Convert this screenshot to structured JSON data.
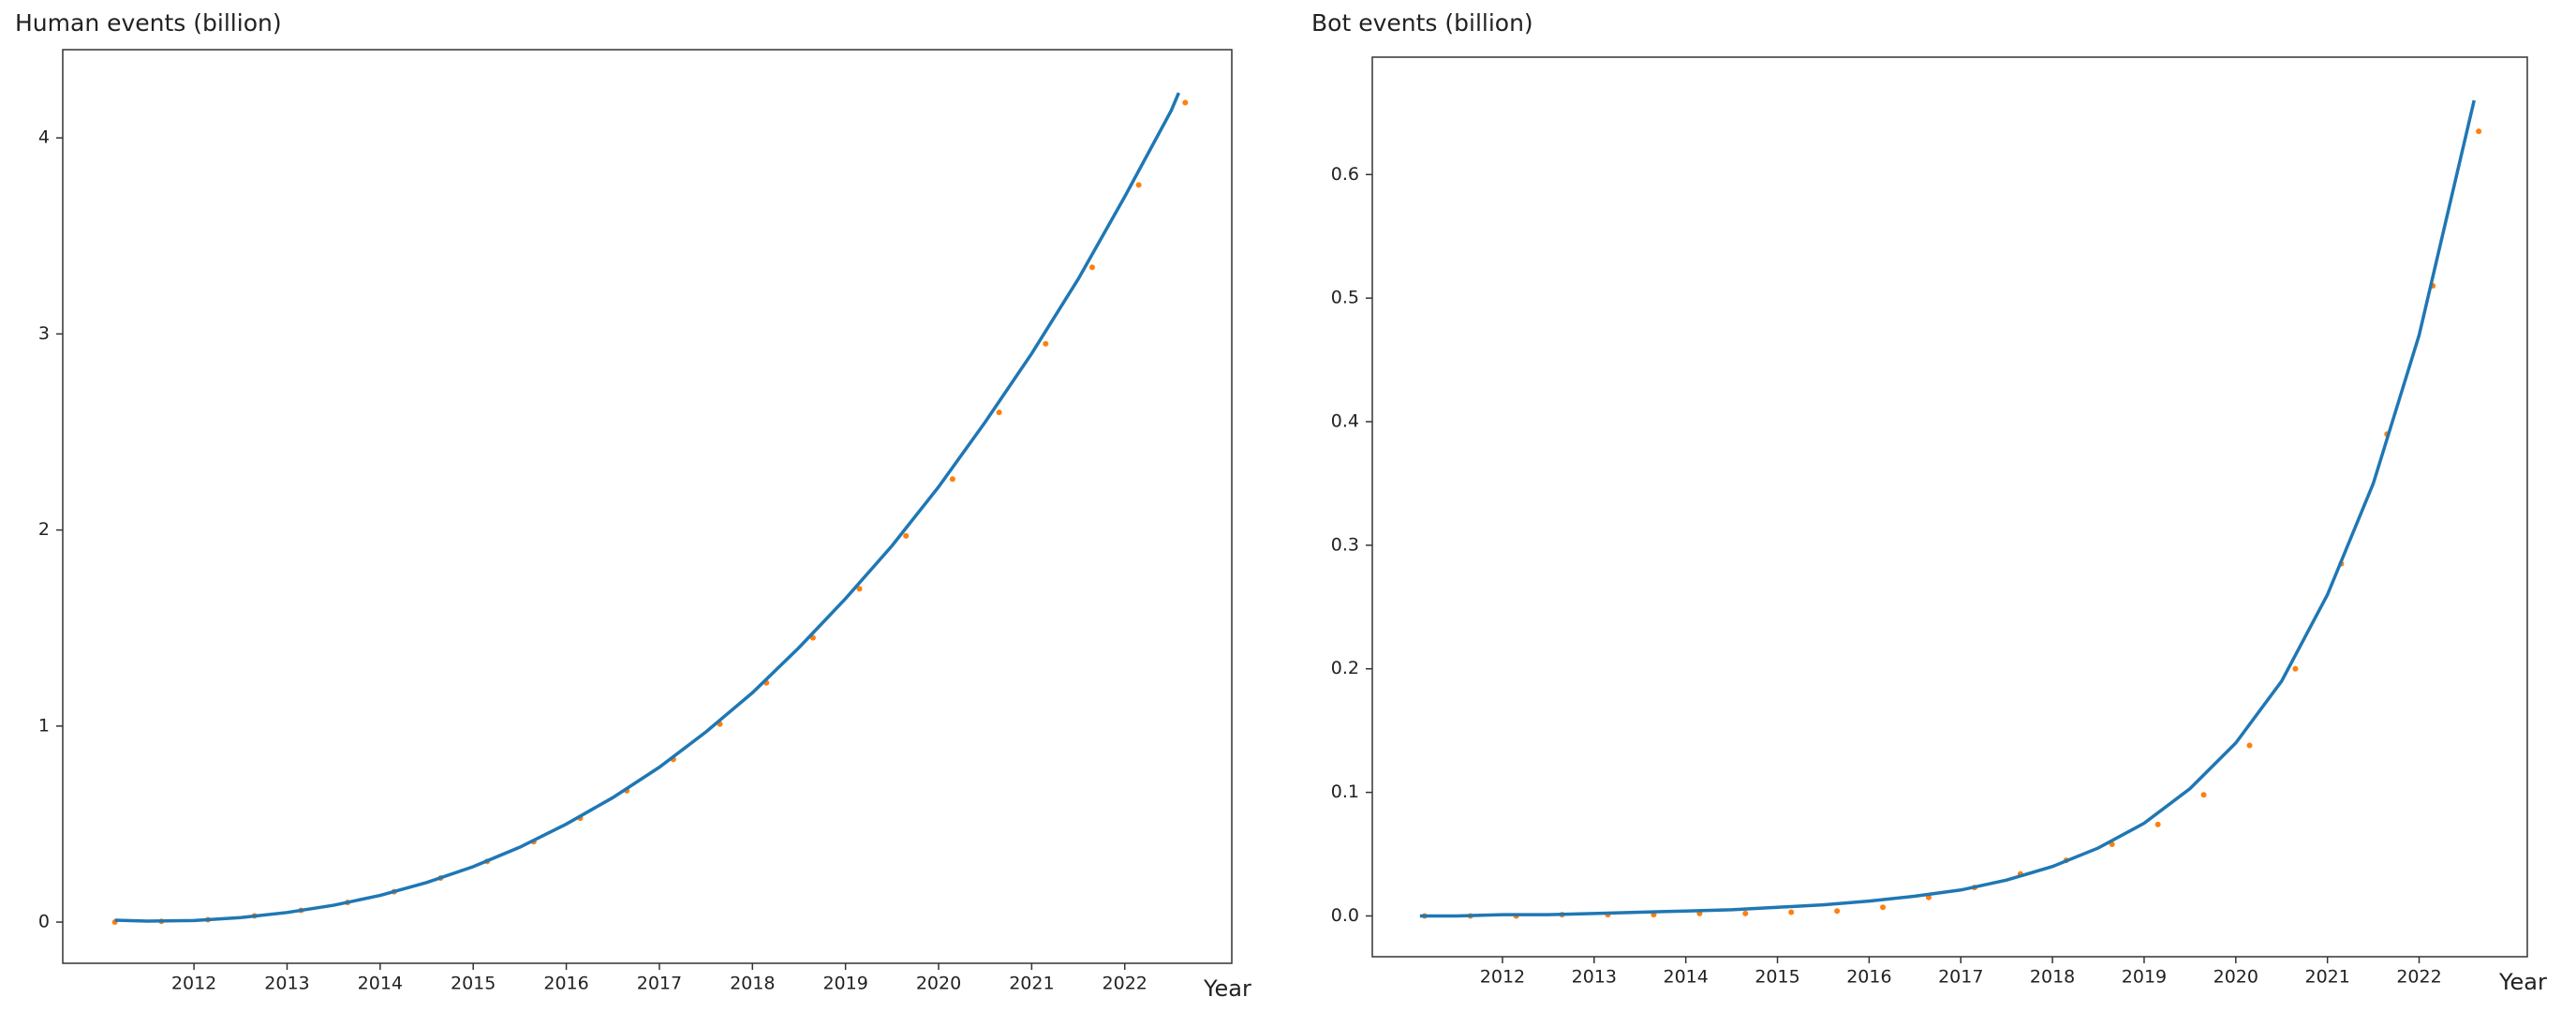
{
  "chart_data": [
    {
      "type": "line",
      "title": "Human events (billion)",
      "xlabel": "Year",
      "xlim": [
        2010.59,
        2023.15
      ],
      "ylim": [
        -0.21,
        4.45
      ],
      "xticks": [
        2012,
        2013,
        2014,
        2015,
        2016,
        2017,
        2018,
        2019,
        2020,
        2021,
        2022
      ],
      "yticks": [
        0,
        1,
        2,
        3,
        4
      ],
      "series": [
        {
          "style": "dots",
          "color": "#ff7f0e",
          "x": [
            2011.15,
            2011.65,
            2012.15,
            2012.65,
            2013.15,
            2013.65,
            2014.15,
            2014.65,
            2015.15,
            2015.65,
            2016.15,
            2016.65,
            2017.15,
            2017.65,
            2018.15,
            2018.65,
            2019.15,
            2019.65,
            2020.15,
            2020.65,
            2021.15,
            2021.65,
            2022.15,
            2022.65
          ],
          "values": [
            0,
            0.004,
            0.012,
            0.032,
            0.06,
            0.1,
            0.155,
            0.225,
            0.31,
            0.41,
            0.53,
            0.67,
            0.83,
            1.01,
            1.22,
            1.45,
            1.7,
            1.97,
            2.26,
            2.6,
            2.95,
            3.34,
            3.76,
            4.18
          ]
        },
        {
          "style": "line",
          "color": "#1f77b4",
          "x": [
            2011.15,
            2011.5,
            2012,
            2012.5,
            2013,
            2013.5,
            2014,
            2014.5,
            2015,
            2015.5,
            2016,
            2016.5,
            2017,
            2017.5,
            2018,
            2018.5,
            2019,
            2019.5,
            2020,
            2020.5,
            2021,
            2021.5,
            2022,
            2022.5,
            2022.58
          ],
          "values": [
            0.01,
            0.005,
            0.008,
            0.023,
            0.049,
            0.086,
            0.136,
            0.202,
            0.283,
            0.382,
            0.5,
            0.635,
            0.79,
            0.97,
            1.17,
            1.4,
            1.65,
            1.92,
            2.22,
            2.55,
            2.9,
            3.28,
            3.7,
            4.14,
            4.23
          ]
        }
      ]
    },
    {
      "type": "line",
      "title": "Bot events (billion)",
      "xlabel": "Year",
      "xlim": [
        2010.58,
        2023.18
      ],
      "ylim": [
        -0.033,
        0.695
      ],
      "xticks": [
        2012,
        2013,
        2014,
        2015,
        2016,
        2017,
        2018,
        2019,
        2020,
        2021,
        2022
      ],
      "yticks": [
        {
          "value": 0,
          "label": "0.0"
        },
        0.1,
        0.2,
        0.3,
        0.4,
        0.5,
        0.6
      ],
      "series": [
        {
          "style": "dots",
          "color": "#ff7f0e",
          "x": [
            2011.15,
            2011.65,
            2012.15,
            2012.65,
            2013.15,
            2013.65,
            2014.15,
            2014.65,
            2015.15,
            2015.65,
            2016.15,
            2016.65,
            2017.15,
            2017.65,
            2018.15,
            2018.65,
            2019.15,
            2019.65,
            2020.15,
            2020.65,
            2021.15,
            2021.65,
            2022.15,
            2022.65
          ],
          "values": [
            0,
            0,
            0,
            0.001,
            0.001,
            0.001,
            0.002,
            0.002,
            0.003,
            0.004,
            0.007,
            0.015,
            0.023,
            0.034,
            0.045,
            0.058,
            0.074,
            0.098,
            0.138,
            0.2,
            0.285,
            0.39,
            0.51,
            0.635
          ]
        },
        {
          "style": "line",
          "color": "#1f77b4",
          "x": [
            2011.1,
            2011.5,
            2012,
            2012.5,
            2013,
            2013.5,
            2014,
            2014.5,
            2015,
            2015.5,
            2016,
            2016.5,
            2017,
            2017.5,
            2018,
            2018.5,
            2019,
            2019.5,
            2020,
            2020.5,
            2021,
            2021.5,
            2022,
            2022.6
          ],
          "values": [
            0,
            0,
            0.001,
            0.001,
            0.002,
            0.003,
            0.004,
            0.005,
            0.007,
            0.009,
            0.012,
            0.016,
            0.021,
            0.029,
            0.04,
            0.055,
            0.075,
            0.103,
            0.14,
            0.19,
            0.26,
            0.35,
            0.47,
            0.66
          ]
        }
      ]
    }
  ]
}
